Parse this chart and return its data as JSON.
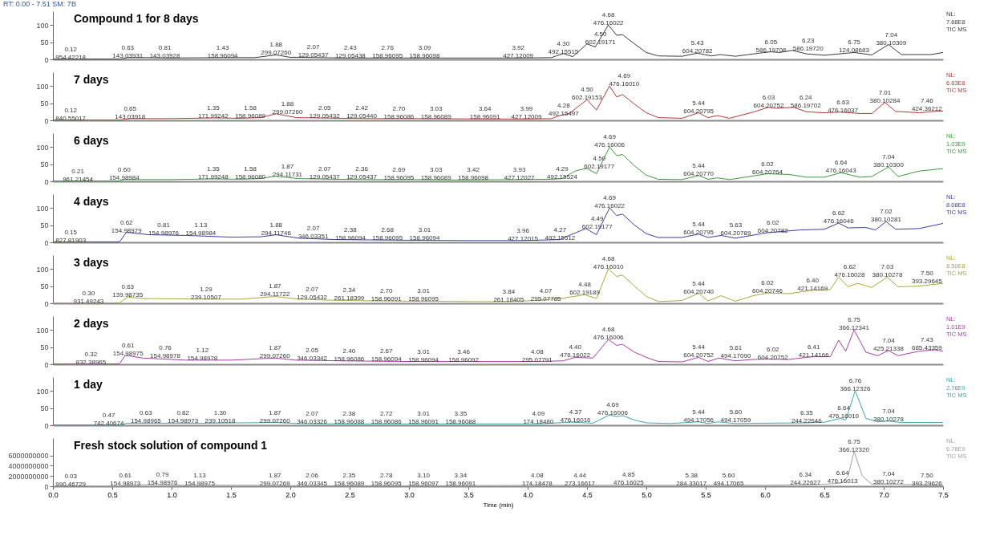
{
  "chart_data": [
    {
      "type": "line",
      "title": "Compound 1 for 8 days",
      "subtitle": "RT: 0.00 - 7.51 SM: 7B",
      "xlim": [
        0,
        7.5
      ],
      "xticks": [
        0,
        0.5,
        1,
        1.5,
        2,
        2.5,
        3,
        3.5,
        4,
        4.5,
        5,
        5.5,
        6,
        6.5,
        7,
        7.5
      ],
      "ylim": [
        0,
        140
      ],
      "yticks": [
        0,
        50,
        100
      ],
      "tick_labels": "y",
      "x": [
        0,
        0.12,
        0.5,
        0.57,
        0.63,
        0.81,
        1.0,
        1.43,
        1.7,
        1.88,
        2.0,
        2.07,
        2.43,
        2.76,
        3.09,
        3.5,
        3.92,
        4.2,
        4.3,
        4.38,
        4.42,
        4.5,
        4.57,
        4.68,
        4.75,
        4.8,
        4.9,
        5.0,
        5.1,
        5.3,
        5.43,
        5.55,
        5.62,
        5.75,
        5.95,
        6.05,
        6.12,
        6.23,
        6.35,
        6.5,
        6.75,
        6.9,
        7.04,
        7.15,
        7.4,
        7.5
      ],
      "series": [
        {
          "color": "#3a3a3a",
          "values": [
            1,
            1,
            1,
            1,
            5,
            5,
            4,
            5,
            5,
            13,
            6,
            6,
            4,
            4,
            4,
            4,
            4,
            5,
            17,
            8,
            20,
            45,
            36,
            100,
            70,
            72,
            45,
            20,
            10,
            9,
            18,
            10,
            14,
            9,
            18,
            22,
            20,
            26,
            16,
            12,
            20,
            13,
            43,
            14,
            14,
            20
          ]
        }
      ],
      "annotations": [
        "NL:\n7.68E8\nTIC MS",
        {
          "text": "0.12\n954.42218",
          "x": 0.12,
          "y": 1
        },
        {
          "text": "0.63\n143.03931",
          "x": 0.63,
          "y": 5
        },
        {
          "text": "0.81\n143.03928",
          "x": 0.81,
          "y": 5
        },
        {
          "text": "1.43\n158.96094",
          "x": 1.43,
          "y": 5
        },
        {
          "text": "1.88\n299.07260",
          "x": 1.88,
          "y": 13
        },
        {
          "text": "2.07\n129.05437",
          "x": 2.07,
          "y": 6
        },
        {
          "text": "2.43\n129.05438",
          "x": 2.43,
          "y": 4
        },
        {
          "text": "2.76\n158.96095",
          "x": 2.76,
          "y": 4
        },
        {
          "text": "3.09\n158.96098",
          "x": 3.09,
          "y": 4
        },
        {
          "text": "3.92\n427.12009",
          "x": 3.92,
          "y": 4
        },
        {
          "text": "4.30\n492.15515",
          "x": 4.3,
          "y": 17
        },
        {
          "text": "4.50\n602.19171",
          "x": 4.5,
          "y": 45
        },
        {
          "text": "4.68\n476.16022",
          "x": 4.68,
          "y": 100
        },
        {
          "text": "5.43\n604.20782",
          "x": 5.43,
          "y": 18
        },
        {
          "text": "6.05\n586.19708",
          "x": 6.05,
          "y": 22
        },
        {
          "text": "6.23\n586.19720",
          "x": 6.23,
          "y": 26
        },
        {
          "text": "6.75\n124.08683",
          "x": 6.75,
          "y": 20
        },
        {
          "text": "7.04\n380.10309",
          "x": 7.04,
          "y": 43
        }
      ]
    },
    {
      "type": "line",
      "title": "7 days",
      "xlim": [
        0,
        7.5
      ],
      "xticks": [
        0,
        0.5,
        1,
        1.5,
        2,
        2.5,
        3,
        3.5,
        4,
        4.5,
        5,
        5.5,
        6,
        6.5,
        7,
        7.5
      ],
      "ylim": [
        0,
        140
      ],
      "yticks": [
        0,
        50,
        100
      ],
      "tick_labels": "y",
      "x": [
        0,
        0.12,
        0.57,
        0.65,
        1.0,
        1.35,
        1.58,
        1.75,
        1.88,
        2.05,
        2.42,
        2.7,
        3.03,
        3.64,
        3.99,
        4.2,
        4.28,
        4.35,
        4.5,
        4.58,
        4.69,
        4.75,
        4.8,
        4.9,
        5.0,
        5.1,
        5.3,
        5.44,
        5.52,
        5.6,
        5.7,
        5.9,
        6.03,
        6.1,
        6.24,
        6.35,
        6.5,
        6.63,
        6.8,
        6.9,
        7.01,
        7.1,
        7.3,
        7.46,
        7.5
      ],
      "series": [
        {
          "color": "#b23a3a",
          "values": [
            1,
            1,
            1,
            5,
            5,
            7,
            6,
            8,
            19,
            8,
            6,
            5,
            5,
            4,
            4,
            5,
            15,
            20,
            60,
            30,
            100,
            68,
            75,
            47,
            22,
            8,
            6,
            22,
            8,
            14,
            6,
            24,
            38,
            35,
            38,
            25,
            22,
            24,
            20,
            20,
            52,
            26,
            22,
            27,
            27
          ]
        }
      ],
      "annotations": [
        "NL:\n6.63E8\nTIC MS",
        {
          "text": "0.12\n840.55017",
          "x": 0.12,
          "y": 1
        },
        {
          "text": "0.65\n143.03918",
          "x": 0.65,
          "y": 5
        },
        {
          "text": "1.35\n171.99242",
          "x": 1.35,
          "y": 7
        },
        {
          "text": "1.58\n158.96089",
          "x": 1.58,
          "y": 6
        },
        {
          "text": "1.88\n299.07260",
          "x": 1.88,
          "y": 19
        },
        {
          "text": "2.05\n129.05432",
          "x": 2.05,
          "y": 8
        },
        {
          "text": "2.42\n129.05440",
          "x": 2.42,
          "y": 6
        },
        {
          "text": "2.70\n158.96086",
          "x": 2.7,
          "y": 5
        },
        {
          "text": "3.03\n158.96089",
          "x": 3.03,
          "y": 5
        },
        {
          "text": "3.64\n158.96091",
          "x": 3.64,
          "y": 4
        },
        {
          "text": "3.99\n427.12009",
          "x": 3.99,
          "y": 4
        },
        {
          "text": "4.28\n492.15497",
          "x": 4.28,
          "y": 15
        },
        {
          "text": "4.50\n602.19153",
          "x": 4.5,
          "y": 60
        },
        {
          "text": "4.69\n476.16010",
          "x": 4.69,
          "y": 100
        },
        {
          "text": "5.44\n604.20795",
          "x": 5.44,
          "y": 22
        },
        {
          "text": "6.03\n604.20752",
          "x": 6.03,
          "y": 38
        },
        {
          "text": "6.24\n586.19702",
          "x": 6.24,
          "y": 38
        },
        {
          "text": "6.63\n476.16037",
          "x": 6.63,
          "y": 24
        },
        {
          "text": "7.01\n380.10284",
          "x": 7.01,
          "y": 52
        },
        {
          "text": "7.46\n424.36212",
          "x": 7.46,
          "y": 27
        }
      ]
    },
    {
      "type": "line",
      "title": "6 days",
      "xlim": [
        0,
        7.5
      ],
      "xticks": [
        0,
        0.5,
        1,
        1.5,
        2,
        2.5,
        3,
        3.5,
        4,
        4.5,
        5,
        5.5,
        6,
        6.5,
        7,
        7.5
      ],
      "ylim": [
        0,
        140
      ],
      "yticks": [
        0,
        50,
        100
      ],
      "tick_labels": "y",
      "x": [
        0,
        0.21,
        0.55,
        0.6,
        1.0,
        1.35,
        1.58,
        1.75,
        1.87,
        2.07,
        2.36,
        2.69,
        3.03,
        3.42,
        3.93,
        4.2,
        4.29,
        4.4,
        4.5,
        4.58,
        4.69,
        4.75,
        4.8,
        4.9,
        5.0,
        5.1,
        5.3,
        5.44,
        5.52,
        5.6,
        5.7,
        6.02,
        6.2,
        6.35,
        6.5,
        6.64,
        6.8,
        6.9,
        7.04,
        7.12,
        7.3,
        7.5
      ],
      "series": [
        {
          "color": "#3c9a3c",
          "values": [
            1,
            1,
            1,
            5,
            5,
            7,
            6,
            8,
            15,
            8,
            6,
            5,
            5,
            4,
            5,
            6,
            8,
            30,
            38,
            22,
            100,
            75,
            78,
            45,
            18,
            6,
            5,
            17,
            6,
            10,
            5,
            22,
            20,
            12,
            12,
            25,
            12,
            14,
            42,
            14,
            30,
            37
          ]
        }
      ],
      "annotations": [
        "NL:\n1.03E9\nTIC MS",
        {
          "text": "0.21\n961.21454",
          "x": 0.21,
          "y": 1
        },
        {
          "text": "0.60\n154.98984",
          "x": 0.6,
          "y": 5
        },
        {
          "text": "1.35\n171.99248",
          "x": 1.35,
          "y": 7
        },
        {
          "text": "1.58\n158.96080",
          "x": 1.58,
          "y": 6
        },
        {
          "text": "1.87\n294.11731",
          "x": 1.87,
          "y": 15
        },
        {
          "text": "2.07\n129.05437",
          "x": 2.07,
          "y": 8
        },
        {
          "text": "2.36\n129.05437",
          "x": 2.36,
          "y": 6
        },
        {
          "text": "2.69\n158.96095",
          "x": 2.69,
          "y": 5
        },
        {
          "text": "3.03\n158.96089",
          "x": 3.03,
          "y": 5
        },
        {
          "text": "3.42\n158.96098",
          "x": 3.42,
          "y": 4
        },
        {
          "text": "3.93\n427.12027",
          "x": 3.93,
          "y": 5
        },
        {
          "text": "4.29\n492.15524",
          "x": 4.29,
          "y": 8
        },
        {
          "text": "4.50\n602.19177",
          "x": 4.5,
          "y": 38
        },
        {
          "text": "4.69\n476.16006",
          "x": 4.69,
          "y": 100
        },
        {
          "text": "5.44\n604.20770",
          "x": 5.44,
          "y": 17
        },
        {
          "text": "6.02\n604.20764",
          "x": 6.02,
          "y": 22
        },
        {
          "text": "6.64\n476.16043",
          "x": 6.64,
          "y": 25
        },
        {
          "text": "7.04\n380.10300",
          "x": 7.04,
          "y": 42
        }
      ]
    },
    {
      "type": "line",
      "title": "4 days",
      "xlim": [
        0,
        7.5
      ],
      "xticks": [
        0,
        0.5,
        1,
        1.5,
        2,
        2.5,
        3,
        3.5,
        4,
        4.5,
        5,
        5.5,
        6,
        6.5,
        7,
        7.5
      ],
      "ylim": [
        0,
        140
      ],
      "yticks": [
        0,
        50,
        100
      ],
      "tick_labels": "y",
      "x": [
        0,
        0.15,
        0.56,
        0.62,
        0.81,
        1.13,
        1.5,
        1.75,
        1.88,
        2.07,
        2.38,
        2.68,
        3.01,
        3.5,
        3.96,
        4.27,
        4.35,
        4.49,
        4.58,
        4.69,
        4.75,
        4.8,
        4.9,
        5.0,
        5.1,
        5.3,
        5.44,
        5.52,
        5.63,
        5.75,
        6.02,
        6.3,
        6.5,
        6.62,
        6.7,
        6.85,
        6.93,
        7.02,
        7.1,
        7.3,
        7.5
      ],
      "series": [
        {
          "color": "#3c3cae",
          "values": [
            1,
            1,
            1,
            29,
            22,
            20,
            15,
            16,
            22,
            12,
            8,
            7,
            6,
            5,
            5,
            8,
            20,
            40,
            22,
            100,
            78,
            82,
            50,
            25,
            14,
            14,
            24,
            14,
            20,
            12,
            28,
            36,
            38,
            56,
            42,
            43,
            36,
            60,
            38,
            40,
            55
          ]
        }
      ],
      "annotations": [
        "NL:\n8.08E8\nTIC MS",
        {
          "text": "0.15\n827.81903",
          "x": 0.15,
          "y": 1
        },
        {
          "text": "0.62\n154.98979",
          "x": 0.62,
          "y": 29
        },
        {
          "text": "0.81\n154.98976",
          "x": 0.81,
          "y": 22
        },
        {
          "text": "1.13\n154.98984",
          "x": 1.13,
          "y": 20
        },
        {
          "text": "1.88\n294.11746",
          "x": 1.88,
          "y": 22
        },
        {
          "text": "2.07\n346.03351",
          "x": 2.07,
          "y": 12
        },
        {
          "text": "2.38\n158.96094",
          "x": 2.38,
          "y": 8
        },
        {
          "text": "2.68\n158.96095",
          "x": 2.68,
          "y": 7
        },
        {
          "text": "3.01\n158.96094",
          "x": 3.01,
          "y": 6
        },
        {
          "text": "3.96\n427.12015",
          "x": 3.96,
          "y": 5
        },
        {
          "text": "4.27\n492.15512",
          "x": 4.27,
          "y": 8
        },
        {
          "text": "4.49\n602.19177",
          "x": 4.49,
          "y": 40
        },
        {
          "text": "4.69\n476.16022",
          "x": 4.69,
          "y": 100
        },
        {
          "text": "5.44\n604.20795",
          "x": 5.44,
          "y": 24
        },
        {
          "text": "5.63\n604.20789",
          "x": 5.63,
          "y": 20
        },
        {
          "text": "6.02\n604.20782",
          "x": 6.02,
          "y": 28
        },
        {
          "text": "6.62\n476.16046",
          "x": 6.62,
          "y": 56
        },
        {
          "text": "7.02\n380.10281",
          "x": 7.02,
          "y": 60
        }
      ]
    },
    {
      "type": "line",
      "title": "3 days",
      "xlim": [
        0,
        7.5
      ],
      "xticks": [
        0,
        0.5,
        1,
        1.5,
        2,
        2.5,
        3,
        3.5,
        4,
        4.5,
        5,
        5.5,
        6,
        6.5,
        7,
        7.5
      ],
      "ylim": [
        0,
        140
      ],
      "yticks": [
        0,
        50,
        100
      ],
      "tick_labels": "y",
      "x": [
        0,
        0.3,
        0.56,
        0.63,
        0.75,
        1.29,
        1.6,
        1.87,
        2.07,
        2.34,
        2.7,
        3.01,
        3.5,
        3.84,
        4.07,
        4.3,
        4.48,
        4.58,
        4.68,
        4.75,
        4.8,
        4.9,
        5.0,
        5.1,
        5.3,
        5.44,
        5.52,
        5.63,
        5.75,
        5.9,
        6.02,
        6.2,
        6.4,
        6.55,
        6.62,
        6.7,
        6.78,
        6.9,
        7.03,
        7.12,
        7.3,
        7.5
      ],
      "series": [
        {
          "color": "#a8a83c",
          "values": [
            1,
            1,
            1,
            18,
            14,
            12,
            12,
            20,
            12,
            9,
            7,
            6,
            5,
            5,
            8,
            15,
            25,
            14,
            100,
            78,
            82,
            50,
            20,
            5,
            8,
            29,
            7,
            22,
            6,
            22,
            30,
            28,
            38,
            40,
            76,
            48,
            58,
            46,
            76,
            48,
            50,
            58
          ]
        }
      ],
      "annotations": [
        "NL:\n8.50E8\nTIC MS",
        {
          "text": "0.30\n931.49243",
          "x": 0.3,
          "y": 1
        },
        {
          "text": "0.63\n139.98735",
          "x": 0.63,
          "y": 18
        },
        {
          "text": "1.29\n239.10507",
          "x": 1.29,
          "y": 12
        },
        {
          "text": "1.87\n294.11722",
          "x": 1.87,
          "y": 20
        },
        {
          "text": "2.07\n129.05432",
          "x": 2.07,
          "y": 12
        },
        {
          "text": "2.34\n261.18399",
          "x": 2.34,
          "y": 9
        },
        {
          "text": "2.70\n158.96091",
          "x": 2.7,
          "y": 7
        },
        {
          "text": "3.01\n158.96095",
          "x": 3.01,
          "y": 6
        },
        {
          "text": "3.84\n261.18405",
          "x": 3.84,
          "y": 5
        },
        {
          "text": "4.07\n295.07785",
          "x": 4.07,
          "y": 8
        },
        {
          "text": "4.48\n602.19189",
          "x": 4.48,
          "y": 25
        },
        {
          "text": "4.68\n476.16010",
          "x": 4.68,
          "y": 100
        },
        {
          "text": "5.44\n604.20740",
          "x": 5.44,
          "y": 29
        },
        {
          "text": "6.02\n604.20746",
          "x": 6.02,
          "y": 30
        },
        {
          "text": "6.40\n421.14169",
          "x": 6.4,
          "y": 38
        },
        {
          "text": "6.62\n476.16028",
          "x": 6.62,
          "y": 76
        },
        {
          "text": "7.03\n380.10278",
          "x": 7.03,
          "y": 76
        },
        {
          "text": "7.50\n393.29645",
          "x": 7.5,
          "y": 58
        }
      ]
    },
    {
      "type": "line",
      "title": "2 days",
      "xlim": [
        0,
        7.5
      ],
      "xticks": [
        0,
        0.5,
        1,
        1.5,
        2,
        2.5,
        3,
        3.5,
        4,
        4.5,
        5,
        5.5,
        6,
        6.5,
        7,
        7.5
      ],
      "ylim": [
        0,
        140
      ],
      "yticks": [
        0,
        50,
        100
      ],
      "tick_labels": "y",
      "x": [
        0,
        0.32,
        0.56,
        0.61,
        0.76,
        1.12,
        1.5,
        1.87,
        2.05,
        2.4,
        2.67,
        3.01,
        3.46,
        4.08,
        4.3,
        4.4,
        4.55,
        4.68,
        4.75,
        4.8,
        4.9,
        5.0,
        5.1,
        5.3,
        5.44,
        5.52,
        5.61,
        5.75,
        5.9,
        6.02,
        6.2,
        6.35,
        6.41,
        6.55,
        6.62,
        6.68,
        6.75,
        6.85,
        6.95,
        7.04,
        7.12,
        7.3,
        7.43,
        7.5
      ],
      "series": [
        {
          "color": "#a83ca8",
          "values": [
            1,
            1,
            1,
            26,
            18,
            12,
            12,
            18,
            12,
            10,
            9,
            8,
            8,
            8,
            10,
            20,
            18,
            72,
            55,
            58,
            35,
            20,
            8,
            7,
            20,
            8,
            18,
            10,
            14,
            15,
            14,
            20,
            22,
            22,
            70,
            38,
            100,
            35,
            25,
            40,
            25,
            38,
            42,
            38
          ]
        }
      ],
      "annotations": [
        "NL:\n1.01E9\nTIC MS",
        {
          "text": "0.32\n832.38965",
          "x": 0.32,
          "y": 1
        },
        {
          "text": "0.61\n154.98975",
          "x": 0.61,
          "y": 26
        },
        {
          "text": "0.76\n154.98978",
          "x": 0.76,
          "y": 18
        },
        {
          "text": "1.12\n154.98978",
          "x": 1.12,
          "y": 12
        },
        {
          "text": "1.87\n299.07260",
          "x": 1.87,
          "y": 18
        },
        {
          "text": "2.05\n346.03342",
          "x": 2.05,
          "y": 12
        },
        {
          "text": "2.40\n158.96086",
          "x": 2.4,
          "y": 10
        },
        {
          "text": "2.67\n158.96094",
          "x": 2.67,
          "y": 9
        },
        {
          "text": "3.01\n158.96094",
          "x": 3.01,
          "y": 8
        },
        {
          "text": "3.46\n158.96092",
          "x": 3.46,
          "y": 8
        },
        {
          "text": "4.08\n295.07791",
          "x": 4.08,
          "y": 8
        },
        {
          "text": "4.40\n476.16022",
          "x": 4.4,
          "y": 20
        },
        {
          "text": "4.68\n476.16006",
          "x": 4.68,
          "y": 72
        },
        {
          "text": "5.44\n604.20752",
          "x": 5.44,
          "y": 20
        },
        {
          "text": "5.61\n494.17090",
          "x": 5.61,
          "y": 18
        },
        {
          "text": "6.02\n604.20752",
          "x": 6.02,
          "y": 15
        },
        {
          "text": "6.41\n421.14166",
          "x": 6.41,
          "y": 22
        },
        {
          "text": "6.75\n366.12341",
          "x": 6.75,
          "y": 100
        },
        {
          "text": "7.04\n425.21338",
          "x": 7.04,
          "y": 40
        },
        {
          "text": "7.43\n685.43359",
          "x": 7.43,
          "y": 42
        }
      ]
    },
    {
      "type": "line",
      "title": "1 day",
      "xlim": [
        0,
        7.5
      ],
      "xticks": [
        0,
        0.5,
        1,
        1.5,
        2,
        2.5,
        3,
        3.5,
        4,
        4.5,
        5,
        5.5,
        6,
        6.5,
        7,
        7.5
      ],
      "ylim": [
        0,
        140
      ],
      "yticks": [
        0,
        50,
        100
      ],
      "tick_labels": "y",
      "x": [
        0,
        0.47,
        0.56,
        0.63,
        0.82,
        1.3,
        1.87,
        2.07,
        2.38,
        2.72,
        3.01,
        3.35,
        4.09,
        4.37,
        4.55,
        4.69,
        4.75,
        4.8,
        4.9,
        5.0,
        5.2,
        5.44,
        5.52,
        5.6,
        5.75,
        6.0,
        6.35,
        6.5,
        6.64,
        6.68,
        6.76,
        6.85,
        6.95,
        7.04,
        7.15,
        7.3,
        7.5
      ],
      "series": [
        {
          "color": "#3aa6a6",
          "values": [
            1,
            1,
            1,
            6,
            6,
            6,
            8,
            5,
            4,
            4,
            4,
            4,
            4,
            9,
            6,
            30,
            25,
            28,
            15,
            7,
            5,
            10,
            5,
            10,
            5,
            6,
            7,
            9,
            20,
            15,
            100,
            20,
            10,
            12,
            8,
            8,
            8
          ]
        }
      ],
      "annotations": [
        "NL:\n2.76E9\nTIC MS",
        {
          "text": "0.47\n742.40674",
          "x": 0.47,
          "y": 1
        },
        {
          "text": "0.63\n154.98965",
          "x": 0.63,
          "y": 6
        },
        {
          "text": "0.82\n154.98973",
          "x": 0.82,
          "y": 6
        },
        {
          "text": "1.30\n239.10518",
          "x": 1.3,
          "y": 6
        },
        {
          "text": "1.87\n299.07260",
          "x": 1.87,
          "y": 8
        },
        {
          "text": "2.07\n346.03326",
          "x": 2.07,
          "y": 5
        },
        {
          "text": "2.38\n158.96088",
          "x": 2.38,
          "y": 4
        },
        {
          "text": "2.72\n158.96086",
          "x": 2.72,
          "y": 4
        },
        {
          "text": "3.01\n158.96091",
          "x": 3.01,
          "y": 4
        },
        {
          "text": "3.35\n158.96088",
          "x": 3.35,
          "y": 4
        },
        {
          "text": "4.09\n174.18480",
          "x": 4.09,
          "y": 4
        },
        {
          "text": "4.37\n476.16016",
          "x": 4.37,
          "y": 9
        },
        {
          "text": "4.69\n476.16006",
          "x": 4.69,
          "y": 30
        },
        {
          "text": "5.44\n494.17056",
          "x": 5.44,
          "y": 10
        },
        {
          "text": "5.60\n494.17059",
          "x": 5.6,
          "y": 10
        },
        {
          "text": "6.35\n244.22646",
          "x": 6.35,
          "y": 7
        },
        {
          "text": "6.64\n476.16010",
          "x": 6.64,
          "y": 20
        },
        {
          "text": "6.76\n366.12326",
          "x": 6.76,
          "y": 100
        },
        {
          "text": "7.04\n380.10278",
          "x": 7.04,
          "y": 12
        }
      ]
    },
    {
      "type": "line",
      "title": "Fresh stock solution of compound 1",
      "xlabel": "Time (min)",
      "xlim": [
        0,
        7.5
      ],
      "ylim": [
        0,
        9400000000
      ],
      "yticks": [
        0,
        2000000000,
        4000000000,
        6000000000
      ],
      "xticks": [
        {
          "value": 0,
          "label": "0.0"
        },
        0.5,
        {
          "value": 1,
          "label": "1.0"
        },
        1.5,
        {
          "value": 2,
          "label": "2.0"
        },
        2.5,
        {
          "value": 3,
          "label": "3.0"
        },
        3.5,
        {
          "value": 4,
          "label": "4.0"
        },
        4.5,
        {
          "value": 5,
          "label": "5.0"
        },
        5.5,
        {
          "value": 6,
          "label": "6.0"
        },
        6.5,
        {
          "value": 7,
          "label": "7.0"
        },
        7.5
      ],
      "x": [
        0,
        0.03,
        0.56,
        0.61,
        0.79,
        1.13,
        1.87,
        2.06,
        2.35,
        2.78,
        3.1,
        3.34,
        4.08,
        4.44,
        4.69,
        4.85,
        5.0,
        5.38,
        5.6,
        6.0,
        6.34,
        6.5,
        6.64,
        6.7,
        6.75,
        6.82,
        6.9,
        7.04,
        7.5
      ],
      "series": [
        {
          "color": "#a0a0a0",
          "values": [
            0,
            0,
            0,
            200000000,
            300000000,
            200000000,
            200000000,
            100000000,
            100000000,
            100000000,
            100000000,
            100000000,
            200000000,
            200000000,
            200000000,
            300000000,
            200000000,
            200000000,
            200000000,
            200000000,
            300000000,
            400000000,
            600000000,
            2000000000,
            6780000000,
            2000000000,
            400000000,
            400000000,
            200000000
          ]
        }
      ],
      "annotations": [
        "NL:\n6.78E9\nTIC MS",
        {
          "text": "0.03\n990.46729",
          "x": 0.03,
          "y": 0
        },
        {
          "text": "0.61\n154.98973",
          "x": 0.61,
          "y": 200000000
        },
        {
          "text": "0.79\n154.98976",
          "x": 0.79,
          "y": 300000000
        },
        {
          "text": "1.13\n154.98975",
          "x": 1.13,
          "y": 200000000
        },
        {
          "text": "1.87\n299.07269",
          "x": 1.87,
          "y": 200000000
        },
        {
          "text": "2.06\n346.03345",
          "x": 2.06,
          "y": 100000000
        },
        {
          "text": "2.35\n158.96089",
          "x": 2.35,
          "y": 100000000
        },
        {
          "text": "2.78\n158.96095",
          "x": 2.78,
          "y": 100000000
        },
        {
          "text": "3.10\n158.96097",
          "x": 3.1,
          "y": 100000000
        },
        {
          "text": "3.34\n158.96091",
          "x": 3.34,
          "y": 100000000
        },
        {
          "text": "4.08\n174.18478",
          "x": 4.08,
          "y": 200000000
        },
        {
          "text": "4.44\n273.16617",
          "x": 4.44,
          "y": 200000000
        },
        {
          "text": "4.85\n476.16025",
          "x": 4.85,
          "y": 300000000
        },
        {
          "text": "5.38\n284.33017",
          "x": 5.38,
          "y": 200000000
        },
        {
          "text": "5.60\n494.17065",
          "x": 5.6,
          "y": 200000000
        },
        {
          "text": "6.34\n244.22627",
          "x": 6.34,
          "y": 300000000
        },
        {
          "text": "6.64\n476.16013",
          "x": 6.64,
          "y": 600000000
        },
        {
          "text": "6.75\n366.12320",
          "x": 6.75,
          "y": 6780000000
        },
        {
          "text": "7.04\n380.10272",
          "x": 7.04,
          "y": 400000000
        },
        {
          "text": "7.50\n393.29626",
          "x": 7.5,
          "y": 200000000
        }
      ]
    }
  ]
}
